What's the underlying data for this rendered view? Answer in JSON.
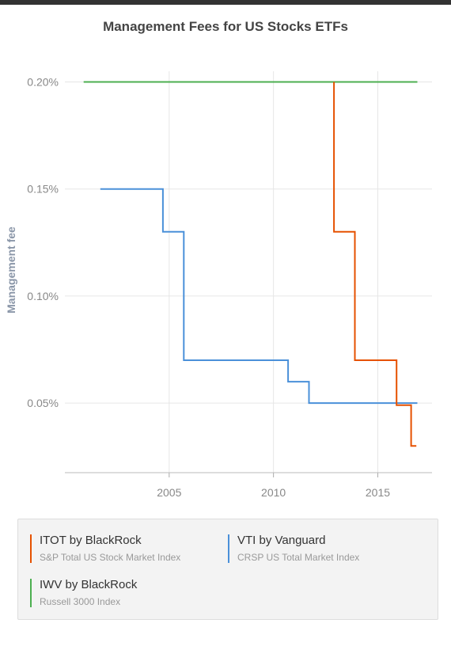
{
  "title": "Management Fees for US Stocks ETFs",
  "chart_data": {
    "type": "line",
    "step": "after",
    "title": "Management Fees for US Stocks ETFs",
    "xlabel": "",
    "ylabel": "Management fee",
    "xlim": [
      2000.0,
      2017.6
    ],
    "ylim": [
      0.0175,
      0.205
    ],
    "x_ticks": [
      2005,
      2010,
      2015
    ],
    "x_tick_labels": [
      "2005",
      "2010",
      "2015"
    ],
    "y_ticks": [
      0.05,
      0.1,
      0.15,
      0.2
    ],
    "y_tick_labels": [
      "0.05%",
      "0.10%",
      "0.15%",
      "0.20%"
    ],
    "grid": true,
    "legend_position": "bottom",
    "series": [
      {
        "name": "IWV by BlackRock",
        "subtitle": "Russell 3000 Index",
        "color": "#4caf50",
        "points": [
          [
            2000.9,
            0.2
          ],
          [
            2016.9,
            0.2
          ]
        ]
      },
      {
        "name": "VTI by Vanguard",
        "subtitle": "CRSP US Total Market Index",
        "color": "#4a90d9",
        "points": [
          [
            2001.7,
            0.15
          ],
          [
            2004.7,
            0.13
          ],
          [
            2005.7,
            0.07
          ],
          [
            2010.7,
            0.06
          ],
          [
            2011.7,
            0.05
          ],
          [
            2016.9,
            0.05
          ]
        ]
      },
      {
        "name": "ITOT by BlackRock",
        "subtitle": "S&P Total US Stock Market Index",
        "color": "#e65100",
        "points": [
          [
            2012.9,
            0.2
          ],
          [
            2012.9,
            0.13
          ],
          [
            2013.9,
            0.07
          ],
          [
            2015.9,
            0.049
          ],
          [
            2016.6,
            0.03
          ],
          [
            2016.85,
            0.03
          ]
        ]
      }
    ]
  },
  "legend": [
    {
      "name": "ITOT by BlackRock",
      "subtitle": "S&P Total US Stock Market Index",
      "color": "#e65100"
    },
    {
      "name": "VTI by Vanguard",
      "subtitle": "CRSP US Total Market Index",
      "color": "#4a90d9"
    },
    {
      "name": "IWV by BlackRock",
      "subtitle": "Russell 3000 Index",
      "color": "#4caf50"
    }
  ]
}
